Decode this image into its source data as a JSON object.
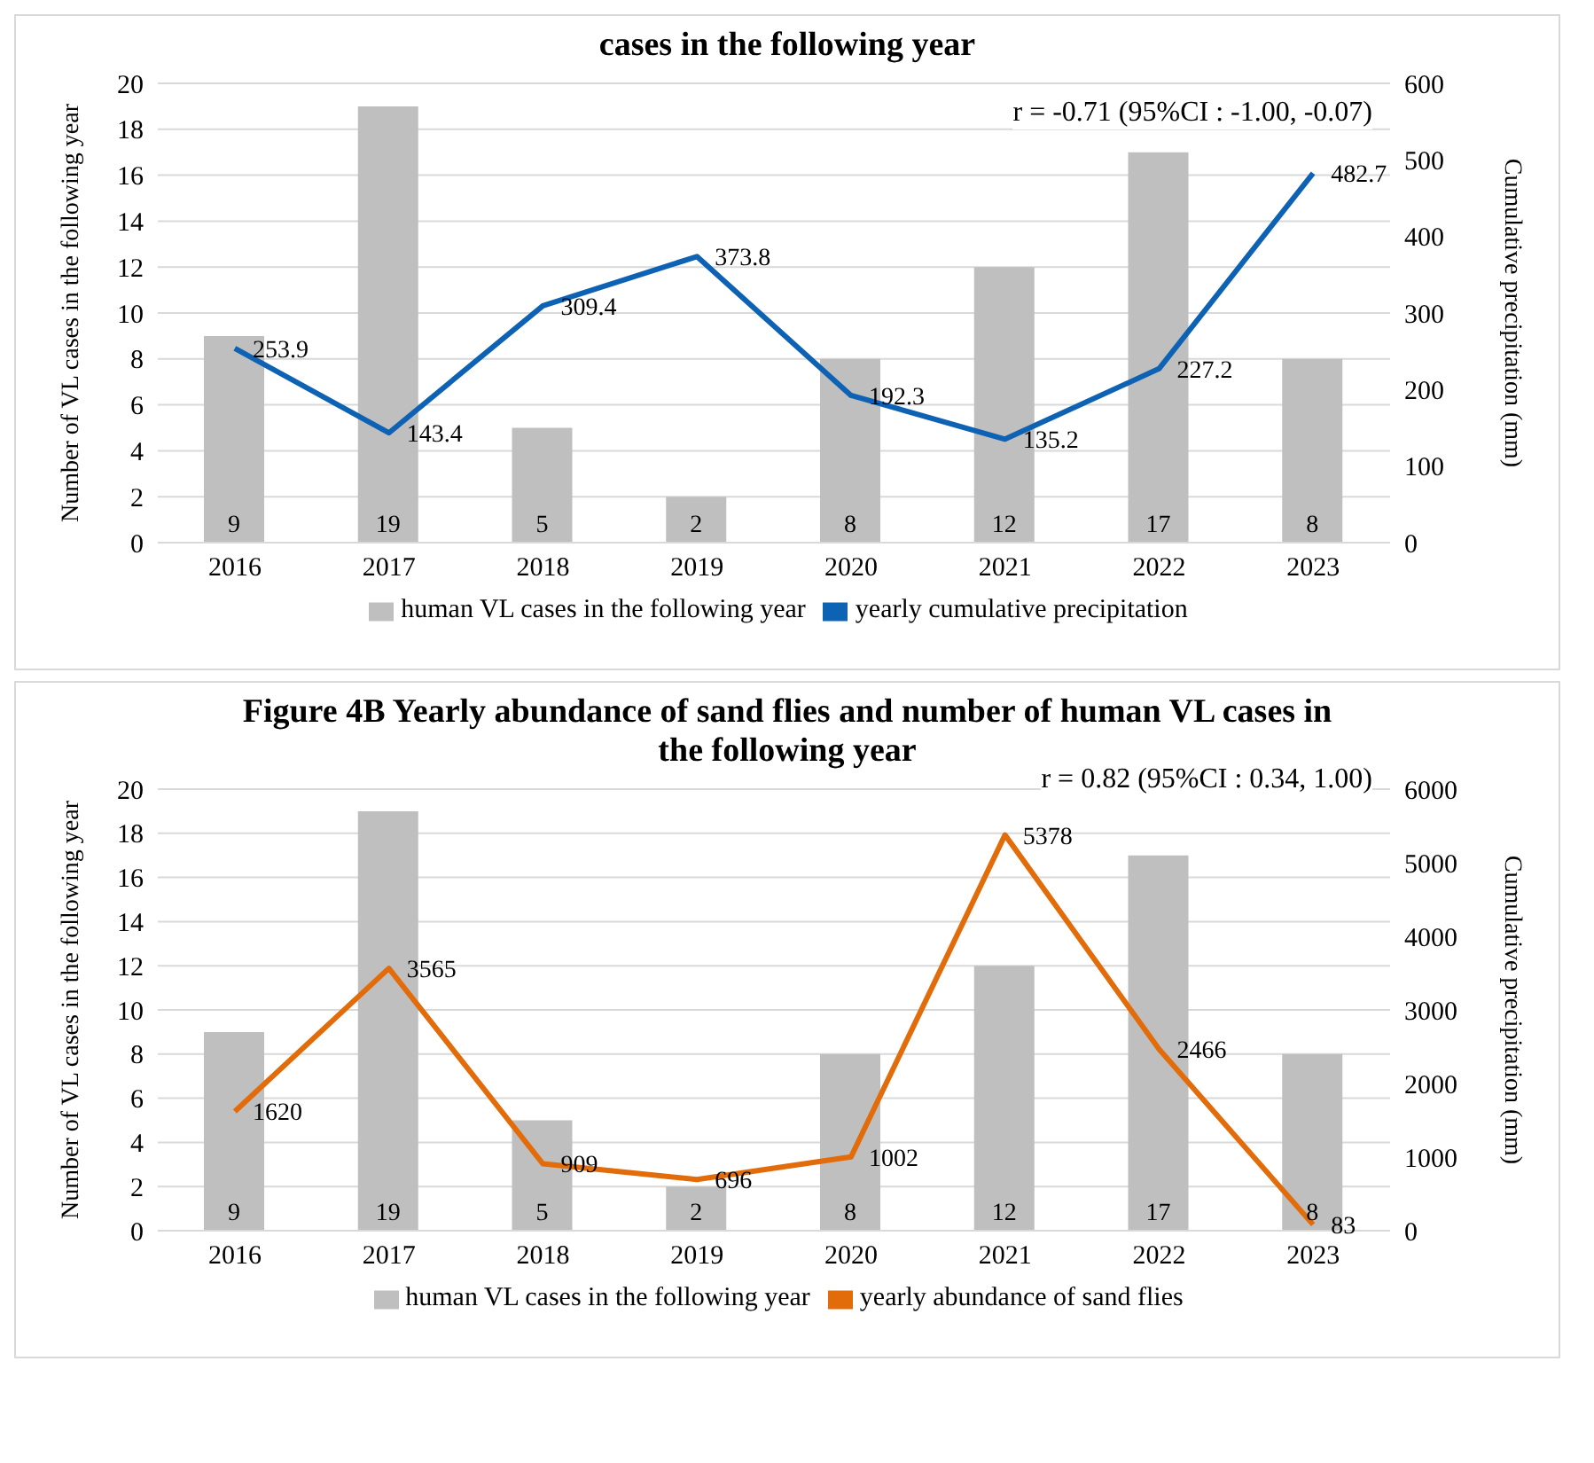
{
  "chart_data": [
    {
      "type": "bar",
      "title": "cases in the following year",
      "categories": [
        "2016",
        "2017",
        "2018",
        "2019",
        "2020",
        "2021",
        "2022",
        "2023"
      ],
      "ylabel": "Number of VL cases in the following year",
      "y2label": "Cumulative precipitation (mm)",
      "ylim": [
        0,
        20
      ],
      "yticks": [
        0,
        2,
        4,
        6,
        8,
        10,
        12,
        14,
        16,
        18,
        20
      ],
      "y2lim": [
        0,
        600
      ],
      "y2ticks": [
        0,
        100,
        200,
        300,
        400,
        500,
        600
      ],
      "grid": "y",
      "legend": "bottom",
      "data_labels": true,
      "marker": "none",
      "line_style": "solid",
      "annotations": [
        "r = -0.71 (95%CI : -1.00, -0.07)"
      ],
      "series": [
        {
          "name": "human VL cases in the following year",
          "color": "#bfbfbf",
          "values": [
            9,
            19,
            5,
            2,
            8,
            12,
            17,
            8
          ]
        },
        {
          "name": "yearly cumulative precipitation",
          "type": "line",
          "axis": "y2",
          "color": "#0e62b4",
          "values": [
            253.9,
            143.4,
            309.4,
            373.8,
            192.3,
            135.2,
            227.2,
            482.7
          ]
        }
      ]
    },
    {
      "type": "bar",
      "title": "Figure 4B Yearly abundance of sand flies and number of human VL cases in the following year",
      "categories": [
        "2016",
        "2017",
        "2018",
        "2019",
        "2020",
        "2021",
        "2022",
        "2023"
      ],
      "ylabel": "Number of VL cases in the following year",
      "y2label": "Cumulative precipitation (mm)",
      "ylim": [
        0,
        20
      ],
      "yticks": [
        0,
        2,
        4,
        6,
        8,
        10,
        12,
        14,
        16,
        18,
        20
      ],
      "y2lim": [
        0,
        6000
      ],
      "y2ticks": [
        0,
        1000,
        2000,
        3000,
        4000,
        5000,
        6000
      ],
      "grid": "y",
      "legend": "bottom",
      "data_labels": true,
      "marker": "none",
      "line_style": "solid",
      "annotations": [
        "r = 0.82 (95%CI : 0.34, 1.00)"
      ],
      "series": [
        {
          "name": "human VL cases in the following year",
          "color": "#bfbfbf",
          "values": [
            9,
            19,
            5,
            2,
            8,
            12,
            17,
            8
          ]
        },
        {
          "name": "yearly abundance of sand flies",
          "type": "line",
          "axis": "y2",
          "color": "#e36c0a",
          "values": [
            1620,
            3565,
            909,
            696,
            1002,
            5378,
            2466,
            83
          ]
        }
      ]
    }
  ]
}
